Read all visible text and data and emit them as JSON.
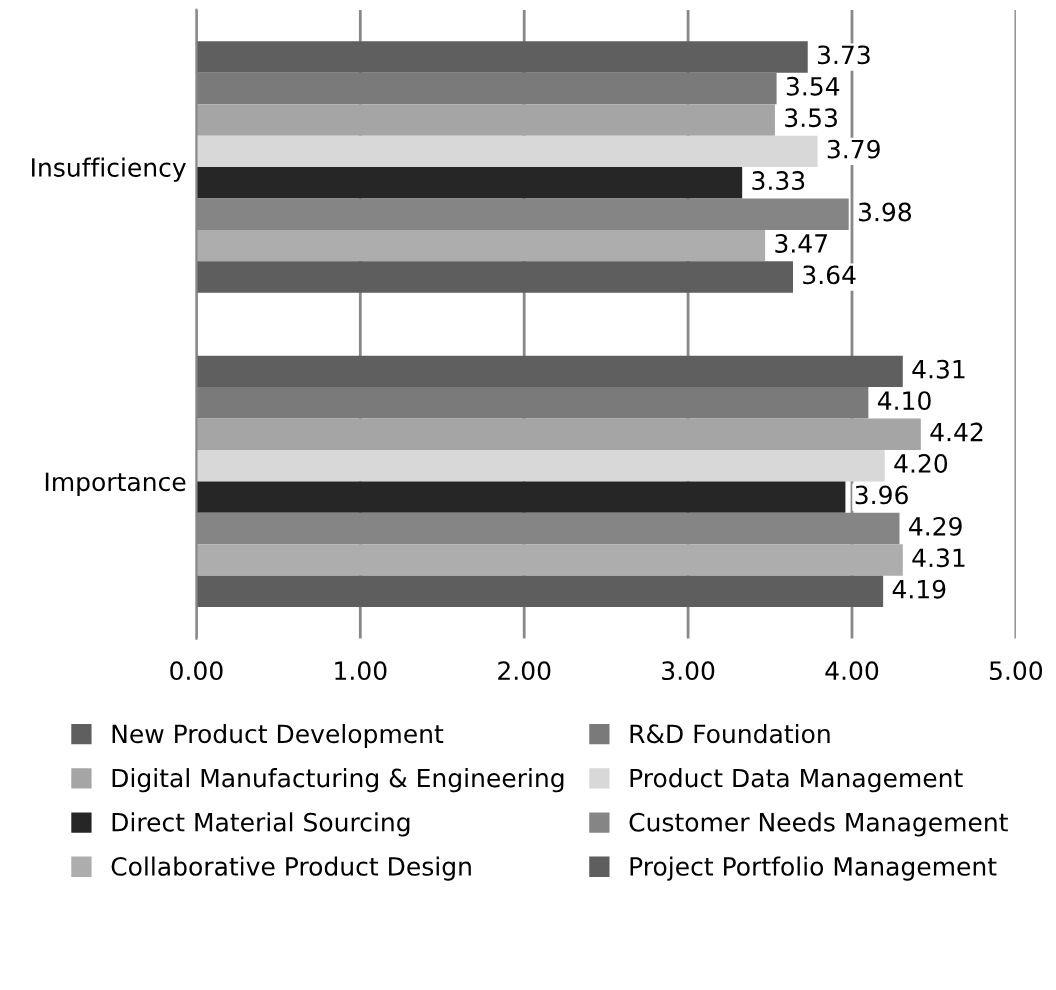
{
  "chart_data": {
    "type": "bar",
    "orientation": "horizontal",
    "categories": [
      "Insufficiency",
      "Importance"
    ],
    "series": [
      {
        "name": "New Product Development",
        "color": "#5f5f5f",
        "values": [
          3.73,
          4.31
        ],
        "value_labels": [
          "3.73",
          "4.31"
        ]
      },
      {
        "name": "R&D Foundation",
        "color": "#7a7a7a",
        "values": [
          3.54,
          4.1
        ],
        "value_labels": [
          "3.54",
          "4.10"
        ]
      },
      {
        "name": "Digital Manufacturing & Engineering",
        "color": "#a5a5a5",
        "values": [
          3.53,
          4.42
        ],
        "value_labels": [
          "3.53",
          "4.42"
        ]
      },
      {
        "name": "Product Data Management",
        "color": "#d8d8d8",
        "values": [
          3.79,
          4.2
        ],
        "value_labels": [
          "3.79",
          "4.20"
        ]
      },
      {
        "name": "Direct Material Sourcing",
        "color": "#262626",
        "values": [
          3.33,
          3.96
        ],
        "value_labels": [
          "3.33",
          "3.96"
        ]
      },
      {
        "name": "Customer Needs Management",
        "color": "#858585",
        "values": [
          3.98,
          4.29
        ],
        "value_labels": [
          "3.98",
          "4.29"
        ]
      },
      {
        "name": "Collaborative Product Design",
        "color": "#adadad",
        "values": [
          3.47,
          4.31
        ],
        "value_labels": [
          "3.47",
          "4.31"
        ]
      },
      {
        "name": "Project Portfolio Management",
        "color": "#5e5e5e",
        "values": [
          3.64,
          4.19
        ],
        "value_labels": [
          "3.64",
          "4.19"
        ]
      }
    ],
    "xlim": [
      0,
      5
    ],
    "xticks": [
      {
        "value": 0,
        "label": "0.00"
      },
      {
        "value": 1,
        "label": "1.00"
      },
      {
        "value": 2,
        "label": "2.00"
      },
      {
        "value": 3,
        "label": "3.00"
      },
      {
        "value": 4,
        "label": "4.00"
      },
      {
        "value": 5,
        "label": "5.00"
      }
    ],
    "grid": "x",
    "legend": "bottom"
  }
}
